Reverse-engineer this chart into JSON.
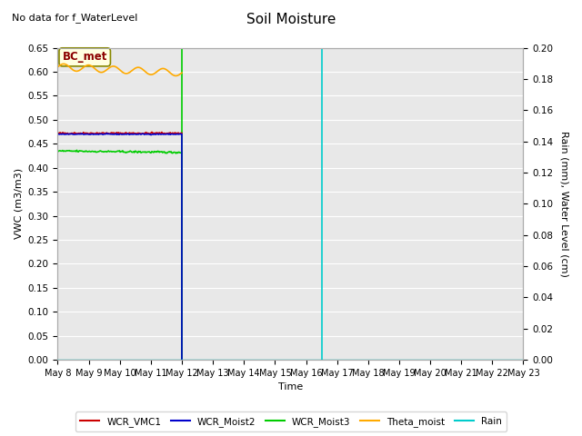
{
  "title": "Soil Moisture",
  "top_left_text": "No data for f_WaterLevel",
  "annotation_box": "BC_met",
  "ylabel_left": "VWC (m3/m3)",
  "ylabel_right": "Rain (mm), Water Level (cm)",
  "xlabel": "Time",
  "ylim_left": [
    0.0,
    0.65
  ],
  "ylim_right": [
    0.0,
    0.2
  ],
  "yticks_left": [
    0.0,
    0.05,
    0.1,
    0.15,
    0.2,
    0.25,
    0.3,
    0.35,
    0.4,
    0.45,
    0.5,
    0.55,
    0.6,
    0.65
  ],
  "yticks_right": [
    0.0,
    0.02,
    0.04,
    0.06,
    0.08,
    0.1,
    0.12,
    0.14,
    0.16,
    0.18,
    0.2
  ],
  "n_days": 15,
  "xtick_labels": [
    "May 8",
    "May 9",
    "May 10",
    "May 11",
    "May 12",
    "May 13",
    "May 14",
    "May 15",
    "May 16",
    "May 17",
    "May 18",
    "May 19",
    "May 20",
    "May 21",
    "May 22",
    "May 23"
  ],
  "background_color": "#e8e8e8",
  "wcr_vmc1_color": "#cc0000",
  "wcr_moist2_color": "#0000cc",
  "wcr_moist3_color": "#00cc00",
  "theta_moist_color": "#ffaa00",
  "rain_color": "#00cccc",
  "cyan_vline_x": 8.5,
  "green_vline_x": 4.0,
  "legend_labels": [
    "WCR_VMC1",
    "WCR_Moist2",
    "WCR_Moist3",
    "Theta_moist",
    "Rain"
  ],
  "legend_colors": [
    "#cc0000",
    "#0000cc",
    "#00cc00",
    "#ffaa00",
    "#00cccc"
  ],
  "fig_width": 6.4,
  "fig_height": 4.8,
  "dpi": 100
}
